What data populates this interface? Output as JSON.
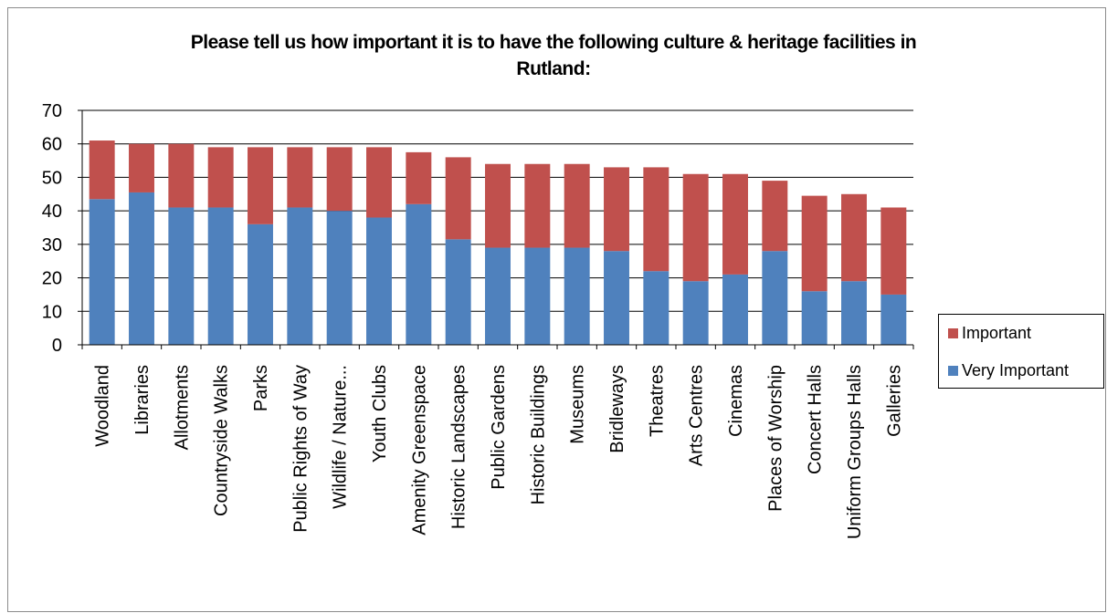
{
  "chart_data": {
    "type": "bar",
    "stacked": true,
    "title": "Please tell us how important it is to have the following culture & heritage facilities in Rutland:",
    "title_lines": [
      "Please tell us how important it is to have the following culture & heritage facilities in",
      "Rutland:"
    ],
    "categories": [
      "Woodland",
      "Libraries",
      "Allotments",
      "Countryside Walks",
      "Parks",
      "Public Rights of Way",
      "Wildlife / Nature...",
      "Youth Clubs",
      "Amenity Greenspace",
      "Historic Landscapes",
      "Public Gardens",
      "Historic Buildings",
      "Museums",
      "Bridleways",
      "Theatres",
      "Arts Centres",
      "Cinemas",
      "Places of Worship",
      "Concert Halls",
      "Uniform Groups Halls",
      "Galleries"
    ],
    "series": [
      {
        "name": "Very Important",
        "color": "#4f81bd",
        "values": [
          43.5,
          45.5,
          41,
          41,
          36,
          41,
          40,
          38,
          42,
          31.5,
          29,
          29,
          29,
          28,
          22,
          19,
          21,
          28,
          16,
          19,
          15
        ]
      },
      {
        "name": "Important",
        "color": "#c0504d",
        "values": [
          17.5,
          14.5,
          19,
          18,
          23,
          18,
          19,
          21,
          15.5,
          24.5,
          25,
          25,
          25,
          25,
          31,
          32,
          30,
          21,
          28.5,
          26,
          26
        ]
      }
    ],
    "legend_order": [
      "Important",
      "Very Important"
    ],
    "ylim": [
      0,
      70
    ],
    "yticks": [
      "0",
      "10",
      "20",
      "30",
      "40",
      "50",
      "60",
      "70"
    ],
    "grid": true,
    "legend_position": "right"
  }
}
